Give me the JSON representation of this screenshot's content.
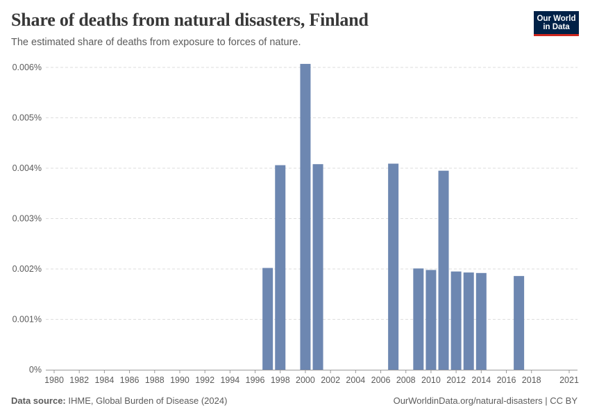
{
  "header": {
    "title": "Share of deaths from natural disasters, Finland",
    "subtitle": "The estimated share of deaths from exposure to forces of nature."
  },
  "logo": {
    "line1": "Our World",
    "line2": "in Data"
  },
  "footer": {
    "source_label": "Data source:",
    "source_text": "IHME, Global Burden of Disease (2024)",
    "url_text": "OurWorldinData.org/natural-disasters | CC BY"
  },
  "colors": {
    "bar": "#6d87b1",
    "grid": "#dddddd",
    "axis": "#999999"
  },
  "chart_data": {
    "type": "bar",
    "title": "Share of deaths from natural disasters, Finland",
    "xlabel": "",
    "ylabel": "",
    "unit": "%",
    "ylim": [
      0,
      0.006
    ],
    "yticks": [
      0,
      0.001,
      0.002,
      0.003,
      0.004,
      0.005,
      0.006
    ],
    "ytick_labels": [
      "0%",
      "0.001%",
      "0.002%",
      "0.003%",
      "0.004%",
      "0.005%",
      "0.006%"
    ],
    "xlim": [
      1980,
      2021
    ],
    "xtick_labels": [
      "1980",
      "1982",
      "1984",
      "1986",
      "1988",
      "1990",
      "1992",
      "1994",
      "1996",
      "1998",
      "2000",
      "2002",
      "2004",
      "2006",
      "2008",
      "2010",
      "2012",
      "2014",
      "2016",
      "2018",
      "2021"
    ],
    "grid": true,
    "series": [
      {
        "name": "Finland",
        "points": [
          {
            "year": 1997,
            "value": 0.00202
          },
          {
            "year": 1998,
            "value": 0.00406
          },
          {
            "year": 2000,
            "value": 0.00607
          },
          {
            "year": 2001,
            "value": 0.00408
          },
          {
            "year": 2007,
            "value": 0.00409
          },
          {
            "year": 2009,
            "value": 0.00201
          },
          {
            "year": 2010,
            "value": 0.00198
          },
          {
            "year": 2011,
            "value": 0.00395
          },
          {
            "year": 2012,
            "value": 0.00195
          },
          {
            "year": 2013,
            "value": 0.00193
          },
          {
            "year": 2014,
            "value": 0.00192
          },
          {
            "year": 2017,
            "value": 0.00186
          }
        ]
      }
    ]
  }
}
